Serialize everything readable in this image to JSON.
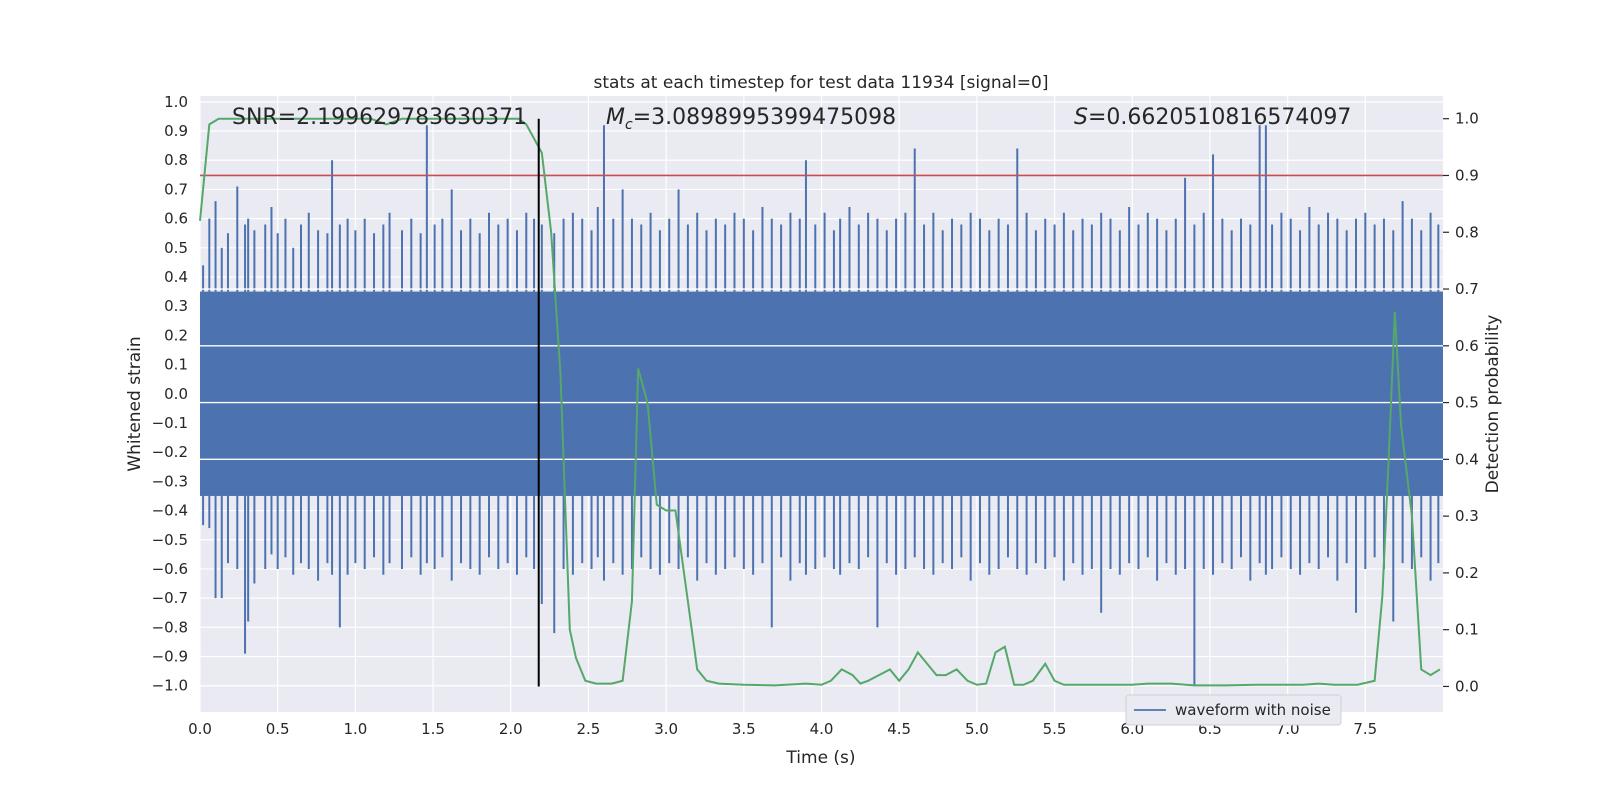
{
  "chart_data": {
    "type": "line",
    "title": "stats at each timestep for test data 11934 [signal=0]",
    "xlabel": "Time (s)",
    "ylabel_left": "Whitened strain",
    "ylabel_right": "Detection probability",
    "xlim": [
      0.0,
      8.0
    ],
    "ylim_left": [
      -1.09,
      1.02
    ],
    "ylim_right": [
      -0.045,
      1.04
    ],
    "x_ticks": [
      0.0,
      0.5,
      1.0,
      1.5,
      2.0,
      2.5,
      3.0,
      3.5,
      4.0,
      4.5,
      5.0,
      5.5,
      6.0,
      6.5,
      7.0,
      7.5
    ],
    "x_tick_labels": [
      "0.0",
      "0.5",
      "1.0",
      "1.5",
      "2.0",
      "2.5",
      "3.0",
      "3.5",
      "4.0",
      "4.5",
      "5.0",
      "5.5",
      "6.0",
      "6.5",
      "7.0",
      "7.5"
    ],
    "y_left_ticks": [
      1.0,
      0.9,
      0.8,
      0.7,
      0.6,
      0.5,
      0.4,
      0.3,
      0.2,
      0.1,
      0.0,
      -0.1,
      -0.2,
      -0.3,
      -0.4,
      -0.5,
      -0.6,
      -0.7,
      -0.8,
      -0.9,
      -1.0
    ],
    "y_left_tick_labels": [
      "1.0",
      "0.9",
      "0.8",
      "0.7",
      "0.6",
      "0.5",
      "0.4",
      "0.3",
      "0.2",
      "0.1",
      "0.0",
      "−0.1",
      "−0.2",
      "−0.3",
      "−0.4",
      "−0.5",
      "−0.6",
      "−0.7",
      "−0.8",
      "−0.9",
      "−1.0"
    ],
    "y_right_ticks": [
      1.0,
      0.9,
      0.8,
      0.7,
      0.6,
      0.5,
      0.4,
      0.3,
      0.2,
      0.1,
      0.0
    ],
    "y_right_tick_labels": [
      "1.0",
      "0.9",
      "0.8",
      "0.7",
      "0.6",
      "0.5",
      "0.4",
      "0.3",
      "0.2",
      "0.1",
      "0.0"
    ],
    "grid": true,
    "annotations": {
      "snr": "SNR=2.199629783630371",
      "mc_symbol": "M",
      "mc_subscript": "c",
      "mc_value": "=3.0898995399475098",
      "s_symbol": "S",
      "s_value": "=0.6620510816574097"
    },
    "threshold_probability": 0.9,
    "marker_time": 2.18,
    "waveform": {
      "name": "waveform with noise",
      "color": "#4c72b0",
      "dense_envelope": 0.35,
      "peak_times": [
        0.02,
        0.06,
        0.1,
        0.14,
        0.18,
        0.24,
        0.29,
        0.31,
        0.35,
        0.42,
        0.46,
        0.5,
        0.55,
        0.6,
        0.65,
        0.7,
        0.76,
        0.82,
        0.85,
        0.9,
        0.95,
        1.0,
        1.06,
        1.12,
        1.18,
        1.22,
        1.3,
        1.36,
        1.42,
        1.46,
        1.51,
        1.56,
        1.62,
        1.68,
        1.74,
        1.8,
        1.86,
        1.92,
        1.98,
        2.04,
        2.1,
        2.15,
        2.2,
        2.28,
        2.34,
        2.4,
        2.46,
        2.52,
        2.56,
        2.6,
        2.66,
        2.72,
        2.78,
        2.84,
        2.9,
        2.96,
        3.02,
        3.08,
        3.14,
        3.2,
        3.26,
        3.32,
        3.38,
        3.44,
        3.5,
        3.56,
        3.62,
        3.68,
        3.74,
        3.8,
        3.86,
        3.9,
        3.96,
        4.02,
        4.08,
        4.12,
        4.18,
        4.24,
        4.3,
        4.36,
        4.42,
        4.48,
        4.54,
        4.6,
        4.66,
        4.72,
        4.78,
        4.84,
        4.9,
        4.96,
        5.02,
        5.08,
        5.14,
        5.2,
        5.26,
        5.32,
        5.38,
        5.44,
        5.5,
        5.56,
        5.62,
        5.68,
        5.74,
        5.8,
        5.86,
        5.92,
        5.98,
        6.04,
        6.1,
        6.16,
        6.22,
        6.28,
        6.34,
        6.4,
        6.46,
        6.52,
        6.58,
        6.64,
        6.7,
        6.76,
        6.82,
        6.86,
        6.9,
        6.96,
        7.02,
        7.08,
        7.14,
        7.2,
        7.26,
        7.32,
        7.38,
        7.44,
        7.5,
        7.56,
        7.62,
        7.68,
        7.74,
        7.8,
        7.86,
        7.92,
        7.97
      ],
      "peak_highs": [
        0.44,
        0.6,
        0.66,
        0.5,
        0.55,
        0.71,
        0.58,
        0.6,
        0.56,
        0.58,
        0.64,
        0.55,
        0.6,
        0.5,
        0.58,
        0.62,
        0.56,
        0.55,
        0.8,
        0.58,
        0.6,
        0.56,
        0.6,
        0.55,
        0.58,
        0.62,
        0.56,
        0.6,
        0.55,
        0.92,
        0.58,
        0.6,
        0.7,
        0.56,
        0.6,
        0.55,
        0.62,
        0.58,
        0.6,
        0.56,
        0.62,
        0.6,
        0.58,
        0.55,
        0.6,
        0.62,
        0.6,
        0.56,
        0.64,
        0.92,
        0.6,
        0.7,
        0.6,
        0.58,
        0.62,
        0.56,
        0.6,
        0.7,
        0.58,
        0.62,
        0.56,
        0.6,
        0.58,
        0.62,
        0.6,
        0.56,
        0.64,
        0.6,
        0.58,
        0.62,
        0.6,
        0.8,
        0.58,
        0.62,
        0.56,
        0.6,
        0.64,
        0.58,
        0.62,
        0.6,
        0.56,
        0.6,
        0.62,
        0.84,
        0.58,
        0.62,
        0.56,
        0.6,
        0.58,
        0.62,
        0.6,
        0.56,
        0.6,
        0.58,
        0.84,
        0.62,
        0.56,
        0.6,
        0.58,
        0.62,
        0.56,
        0.6,
        0.58,
        0.62,
        0.6,
        0.56,
        0.64,
        0.58,
        0.62,
        0.6,
        0.56,
        0.6,
        0.74,
        0.58,
        0.62,
        0.82,
        0.6,
        0.56,
        0.6,
        0.58,
        0.92,
        0.92,
        0.58,
        0.62,
        0.6,
        0.56,
        0.64,
        0.58,
        0.62,
        0.6,
        0.56,
        0.6,
        0.62,
        0.58,
        0.6,
        0.56,
        0.66,
        0.6,
        0.56,
        0.62,
        0.58
      ],
      "peak_lows": [
        -0.45,
        -0.46,
        -0.7,
        -0.7,
        -0.58,
        -0.6,
        -0.89,
        -0.78,
        -0.65,
        -0.6,
        -0.55,
        -0.6,
        -0.56,
        -0.62,
        -0.58,
        -0.6,
        -0.64,
        -0.58,
        -0.62,
        -0.8,
        -0.62,
        -0.58,
        -0.6,
        -0.56,
        -0.62,
        -0.58,
        -0.6,
        -0.56,
        -0.62,
        -0.58,
        -0.6,
        -0.56,
        -0.64,
        -0.58,
        -0.6,
        -0.62,
        -0.56,
        -0.6,
        -0.58,
        -0.62,
        -0.56,
        -0.6,
        -0.72,
        -0.82,
        -0.6,
        -0.62,
        -0.58,
        -0.6,
        -0.56,
        -0.64,
        -0.58,
        -0.62,
        -0.6,
        -0.56,
        -0.6,
        -0.62,
        -0.58,
        -0.6,
        -0.56,
        -0.64,
        -0.58,
        -0.62,
        -0.6,
        -0.56,
        -0.6,
        -0.62,
        -0.58,
        -0.8,
        -0.56,
        -0.64,
        -0.58,
        -0.62,
        -0.6,
        -0.56,
        -0.6,
        -0.62,
        -0.58,
        -0.6,
        -0.56,
        -0.8,
        -0.58,
        -0.62,
        -0.6,
        -0.56,
        -0.6,
        -0.62,
        -0.58,
        -0.6,
        -0.56,
        -0.64,
        -0.58,
        -0.62,
        -0.6,
        -0.56,
        -0.6,
        -0.62,
        -0.58,
        -0.6,
        -0.56,
        -0.64,
        -0.58,
        -0.62,
        -0.6,
        -0.75,
        -0.6,
        -0.62,
        -0.58,
        -0.6,
        -0.56,
        -0.64,
        -0.58,
        -0.62,
        -0.6,
        -1.0,
        -0.6,
        -0.62,
        -0.58,
        -0.6,
        -0.56,
        -0.64,
        -0.58,
        -0.62,
        -0.6,
        -0.56,
        -0.6,
        -0.62,
        -0.58,
        -0.6,
        -0.56,
        -0.64,
        -0.58,
        -0.75,
        -0.6,
        -0.56,
        -0.6,
        -0.78,
        -0.58,
        -0.6,
        -0.56,
        -0.64,
        -0.58
      ]
    },
    "probability": {
      "color": "#55a868",
      "x": [
        0.0,
        0.06,
        0.12,
        0.3,
        0.5,
        0.7,
        0.9,
        1.0,
        1.1,
        1.2,
        1.3,
        1.4,
        1.5,
        1.6,
        1.7,
        1.8,
        1.9,
        2.0,
        2.05,
        2.1,
        2.2,
        2.26,
        2.32,
        2.38,
        2.42,
        2.48,
        2.55,
        2.65,
        2.72,
        2.78,
        2.82,
        2.88,
        2.94,
        3.0,
        3.06,
        3.14,
        3.2,
        3.26,
        3.34,
        3.5,
        3.7,
        3.9,
        4.0,
        4.06,
        4.13,
        4.2,
        4.25,
        4.3,
        4.37,
        4.44,
        4.5,
        4.56,
        4.62,
        4.68,
        4.74,
        4.8,
        4.87,
        4.94,
        5.0,
        5.06,
        5.12,
        5.18,
        5.24,
        5.3,
        5.36,
        5.44,
        5.5,
        5.56,
        5.65,
        5.8,
        6.0,
        6.1,
        6.25,
        6.4,
        6.6,
        6.8,
        7.0,
        7.1,
        7.2,
        7.3,
        7.45,
        7.56,
        7.61,
        7.65,
        7.69,
        7.73,
        7.8,
        7.86,
        7.92,
        7.98
      ],
      "y": [
        0.82,
        0.99,
        1.0,
        1.0,
        1.0,
        1.0,
        1.0,
        1.0,
        1.0,
        0.99,
        1.0,
        1.0,
        1.0,
        1.0,
        1.0,
        1.0,
        1.0,
        1.0,
        1.0,
        0.99,
        0.94,
        0.8,
        0.55,
        0.1,
        0.05,
        0.01,
        0.005,
        0.005,
        0.01,
        0.15,
        0.56,
        0.5,
        0.32,
        0.31,
        0.31,
        0.15,
        0.03,
        0.01,
        0.005,
        0.003,
        0.002,
        0.005,
        0.003,
        0.01,
        0.03,
        0.02,
        0.005,
        0.01,
        0.02,
        0.03,
        0.01,
        0.03,
        0.06,
        0.04,
        0.02,
        0.02,
        0.03,
        0.01,
        0.003,
        0.005,
        0.06,
        0.07,
        0.003,
        0.003,
        0.01,
        0.04,
        0.01,
        0.003,
        0.003,
        0.003,
        0.003,
        0.005,
        0.005,
        0.002,
        0.002,
        0.003,
        0.003,
        0.003,
        0.005,
        0.003,
        0.003,
        0.01,
        0.16,
        0.4,
        0.66,
        0.46,
        0.3,
        0.03,
        0.02,
        0.03
      ]
    },
    "legend": {
      "position": "lower-right",
      "entries": [
        "waveform with noise"
      ]
    },
    "threshold_color": "#c44e52",
    "marker_color": "#000000",
    "axes_bg": "#eaeaf2"
  }
}
